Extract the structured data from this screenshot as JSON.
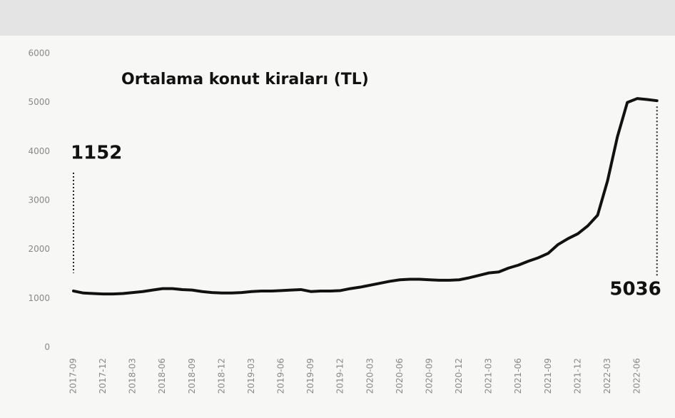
{
  "chart_data": {
    "type": "line",
    "title": "Ortalama konut kiraları (TL)",
    "categories": [
      "2017-09",
      null,
      null,
      "2017-12",
      null,
      null,
      "2018-03",
      null,
      null,
      "2018-06",
      null,
      null,
      "2018-09",
      null,
      null,
      "2018-12",
      null,
      null,
      "2019-03",
      null,
      null,
      "2019-06",
      null,
      null,
      "2019-09",
      null,
      null,
      "2019-12",
      null,
      null,
      "2020-03",
      null,
      null,
      "2020-06",
      null,
      null,
      "2020-09",
      null,
      null,
      "2020-12",
      null,
      null,
      "2021-03",
      null,
      null,
      "2021-06",
      null,
      null,
      "2021-09",
      null,
      null,
      "2021-12",
      null,
      null,
      "2022-03",
      null,
      null,
      "2022-06",
      null,
      null
    ],
    "values": [
      1152,
      1110,
      1100,
      1090,
      1090,
      1100,
      1120,
      1140,
      1170,
      1200,
      1200,
      1180,
      1170,
      1140,
      1120,
      1110,
      1110,
      1120,
      1140,
      1150,
      1150,
      1160,
      1170,
      1180,
      1140,
      1150,
      1150,
      1160,
      1200,
      1230,
      1270,
      1310,
      1350,
      1380,
      1390,
      1390,
      1380,
      1370,
      1370,
      1380,
      1420,
      1470,
      1520,
      1540,
      1620,
      1680,
      1760,
      1830,
      1920,
      2100,
      2220,
      2320,
      2480,
      2700,
      3400,
      4300,
      5000,
      5080,
      5060,
      5036
    ],
    "color": "#111111",
    "ylim": [
      0,
      6000
    ],
    "yticks": [
      0,
      1000,
      2000,
      3000,
      4000,
      5000,
      6000
    ],
    "grid": false
  }
}
